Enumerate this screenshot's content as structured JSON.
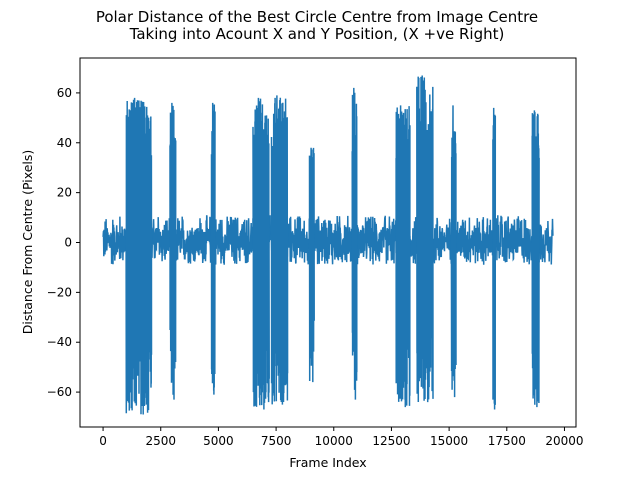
{
  "chart_data": {
    "type": "line",
    "title_line1": "Polar Distance of the Best Circle Centre from Image Centre",
    "title_line2": "Taking into Acount X and Y Position, (X +ve Right)",
    "xlabel": "Frame Index",
    "ylabel": "Distance From Centre (Pixels)",
    "xlim": [
      -1000,
      20500
    ],
    "ylim": [
      -74,
      74
    ],
    "xticks": [
      0,
      2500,
      5000,
      7500,
      10000,
      12500,
      15000,
      17500,
      20000
    ],
    "xtick_labels": [
      "0",
      "2500",
      "5000",
      "7500",
      "10000",
      "12500",
      "15000",
      "17500",
      "20000"
    ],
    "yticks": [
      -60,
      -40,
      -20,
      0,
      20,
      40,
      60
    ],
    "ytick_labels": [
      "−60",
      "−40",
      "−20",
      "0",
      "20",
      "40",
      "60"
    ],
    "grid": false,
    "line_color": "#1f77b4",
    "noise_band": {
      "x_range": [
        0,
        19500
      ],
      "approx_min": -9,
      "approx_max": 11
    },
    "spike_segments": [
      {
        "x_start": 1000,
        "x_end": 2100,
        "min": -69,
        "max": 58
      },
      {
        "x_start": 2900,
        "x_end": 3150,
        "min": -63,
        "max": 56
      },
      {
        "x_start": 4700,
        "x_end": 4850,
        "min": -61,
        "max": 56
      },
      {
        "x_start": 6500,
        "x_end": 7200,
        "min": -67,
        "max": 58
      },
      {
        "x_start": 7300,
        "x_end": 8000,
        "min": -65,
        "max": 59
      },
      {
        "x_start": 8950,
        "x_end": 9150,
        "min": -56,
        "max": 38
      },
      {
        "x_start": 10800,
        "x_end": 11000,
        "min": -63,
        "max": 62
      },
      {
        "x_start": 12700,
        "x_end": 13300,
        "min": -66,
        "max": 55
      },
      {
        "x_start": 13600,
        "x_end": 14300,
        "min": -64,
        "max": 67
      },
      {
        "x_start": 15100,
        "x_end": 15300,
        "min": -62,
        "max": 55
      },
      {
        "x_start": 16900,
        "x_end": 17000,
        "min": -67,
        "max": 54
      },
      {
        "x_start": 18600,
        "x_end": 18900,
        "min": -66,
        "max": 53
      }
    ]
  }
}
